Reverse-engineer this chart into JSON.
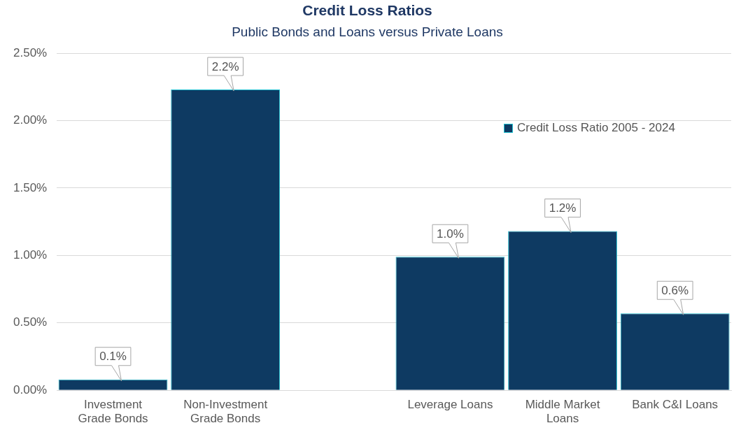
{
  "chart_data": {
    "type": "bar",
    "title": "Credit Loss Ratios",
    "subtitle": "Public Bonds and Loans versus Private Loans",
    "categories": [
      "Investment Grade Bonds",
      "Non-Investment Grade Bonds",
      null,
      "Leverage Loans",
      "Middle Market Loans",
      "Bank C&I Loans"
    ],
    "series": [
      {
        "name": "Credit Loss Ratio 2005 - 2024",
        "color": "#0e3a62",
        "values": [
          0.08,
          2.23,
          null,
          0.99,
          1.18,
          0.57
        ],
        "value_labels": [
          "0.1%",
          "2.2%",
          null,
          "1.0%",
          "1.2%",
          "0.6%"
        ]
      }
    ],
    "ylim": [
      0,
      2.5
    ],
    "yticks": [
      {
        "value": 0,
        "label": "0.00%"
      },
      {
        "value": 0.5,
        "label": "0.50%"
      },
      {
        "value": 1,
        "label": "1.00%"
      },
      {
        "value": 1.5,
        "label": "1.50%"
      },
      {
        "value": 2,
        "label": "2.00%"
      },
      {
        "value": 2.5,
        "label": "2.50%"
      }
    ],
    "grid": "y",
    "legend": "top right"
  }
}
